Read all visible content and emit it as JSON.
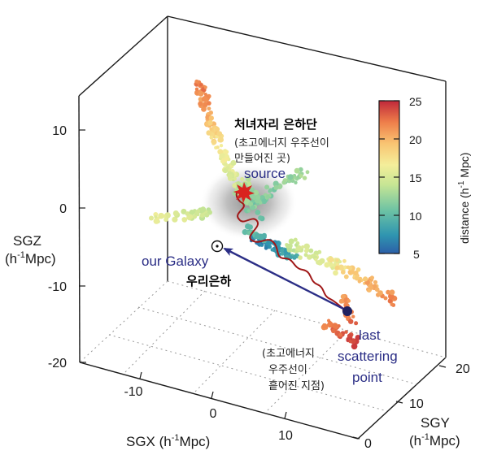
{
  "labels": {
    "source_kr": "처녀자리 은하단",
    "source_kr_note_1": "(초고에너지 우주선이",
    "source_kr_note_2": "만들어진 곳)",
    "source_en": "source",
    "galaxy_en": "our Galaxy",
    "galaxy_kr": "우리은하",
    "last_1": "last",
    "last_2": "scattering",
    "last_3": "point",
    "scatter_kr_1": "(초고에너지",
    "scatter_kr_2": "우주선이",
    "scatter_kr_3": "흩어진 지점)"
  },
  "axes": {
    "sgz_title_1": "SGZ",
    "sgz_title_2": "(h",
    "sgz_title_sup": "-1",
    "sgz_title_3": "Mpc)",
    "sgz_ticks": [
      "10",
      "0",
      "-10",
      "-20"
    ],
    "sgx_title": "SGX (h",
    "sgx_title_sup": "-1",
    "sgx_title_end": "Mpc)",
    "sgx_ticks": [
      "-10",
      "0",
      "10"
    ],
    "sgy_title_1": "SGY",
    "sgy_title_2": "(h",
    "sgy_title_sup": "-1",
    "sgy_title_3": "Mpc)",
    "sgy_ticks": [
      "20",
      "10",
      "0"
    ]
  },
  "colorbar": {
    "title": "distance (h",
    "title_sup": "-1",
    "title_end": " Mpc)",
    "ticks": [
      "25",
      "20",
      "15",
      "10",
      "5"
    ],
    "min": 5,
    "max": 25
  },
  "colors": {
    "path": "#a01818",
    "arrow": "#2b2e86",
    "halo": "#8a8a8a",
    "source_star": "#d9231f"
  }
}
